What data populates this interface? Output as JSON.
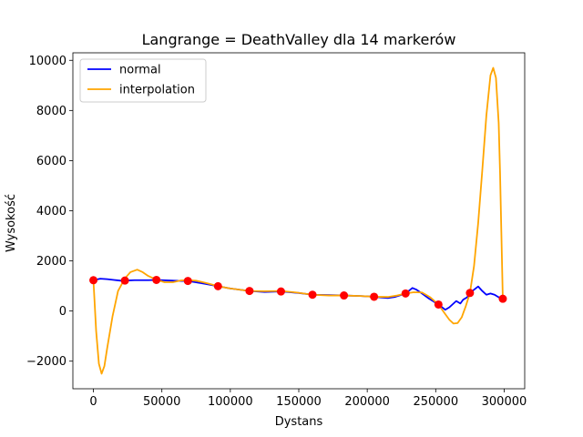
{
  "chart_data": {
    "type": "line",
    "title": "Langrange = DeathValley dla 14 markerów",
    "xlabel": "Dystans",
    "ylabel": "Wysokość",
    "xlim": [
      -15000,
      315000
    ],
    "ylim": [
      -3100,
      10300
    ],
    "x_ticks": [
      0,
      50000,
      100000,
      150000,
      200000,
      250000,
      300000
    ],
    "y_ticks": [
      -2000,
      0,
      2000,
      4000,
      6000,
      8000,
      10000
    ],
    "grid": false,
    "legend_position": "upper-left",
    "colors": {
      "normal": "#0000ff",
      "interpolation": "#ffa500",
      "markers": "#ff0000"
    },
    "series": [
      {
        "name": "normal",
        "type": "line",
        "x": [
          0,
          5000,
          10000,
          15000,
          20000,
          23000,
          30000,
          40000,
          46000,
          55000,
          65000,
          69000,
          80000,
          91000,
          100000,
          114000,
          125000,
          137000,
          150000,
          160000,
          170000,
          183000,
          195000,
          205000,
          210000,
          215000,
          220000,
          228000,
          233000,
          236000,
          240000,
          245000,
          252000,
          257000,
          260000,
          265000,
          268000,
          270000,
          273000,
          275000,
          278000,
          281000,
          284000,
          287000,
          290000,
          293000,
          296000,
          299000
        ],
        "y": [
          1230,
          1290,
          1270,
          1240,
          1210,
          1215,
          1230,
          1230,
          1240,
          1220,
          1200,
          1200,
          1100,
          990,
          900,
          800,
          760,
          780,
          720,
          650,
          640,
          620,
          600,
          570,
          540,
          520,
          560,
          700,
          920,
          850,
          700,
          500,
          260,
          50,
          150,
          400,
          300,
          450,
          550,
          720,
          850,
          980,
          800,
          650,
          700,
          650,
          550,
          490
        ]
      },
      {
        "name": "interpolation",
        "type": "line",
        "x": [
          0,
          2000,
          4000,
          6000,
          8000,
          10000,
          14000,
          18000,
          23000,
          27000,
          32000,
          36000,
          40000,
          46000,
          52000,
          58000,
          64000,
          69000,
          75000,
          80000,
          85000,
          91000,
          100000,
          114000,
          125000,
          137000,
          148000,
          160000,
          172000,
          183000,
          195000,
          205000,
          215000,
          222000,
          228000,
          234000,
          240000,
          246000,
          252000,
          256000,
          260000,
          263000,
          266000,
          269000,
          272000,
          275000,
          278000,
          281000,
          284000,
          287000,
          290000,
          292000,
          294000,
          296000,
          297000,
          298000,
          299000
        ],
        "y": [
          1230,
          -800,
          -2100,
          -2500,
          -2200,
          -1500,
          -200,
          800,
          1300,
          1550,
          1650,
          1550,
          1400,
          1250,
          1150,
          1150,
          1220,
          1230,
          1210,
          1150,
          1080,
          990,
          900,
          800,
          790,
          800,
          740,
          650,
          620,
          620,
          600,
          570,
          560,
          620,
          700,
          750,
          740,
          550,
          260,
          -50,
          -350,
          -500,
          -480,
          -250,
          200,
          720,
          1800,
          3500,
          5600,
          7800,
          9400,
          9700,
          9300,
          7500,
          5500,
          3000,
          500
        ]
      },
      {
        "name": "markers",
        "type": "scatter",
        "x": [
          0,
          23000,
          46000,
          69000,
          91000,
          114000,
          137000,
          160000,
          183000,
          205000,
          228000,
          252000,
          275000,
          299000
        ],
        "y": [
          1230,
          1215,
          1240,
          1200,
          990,
          800,
          780,
          650,
          620,
          570,
          700,
          260,
          720,
          490
        ]
      }
    ]
  }
}
